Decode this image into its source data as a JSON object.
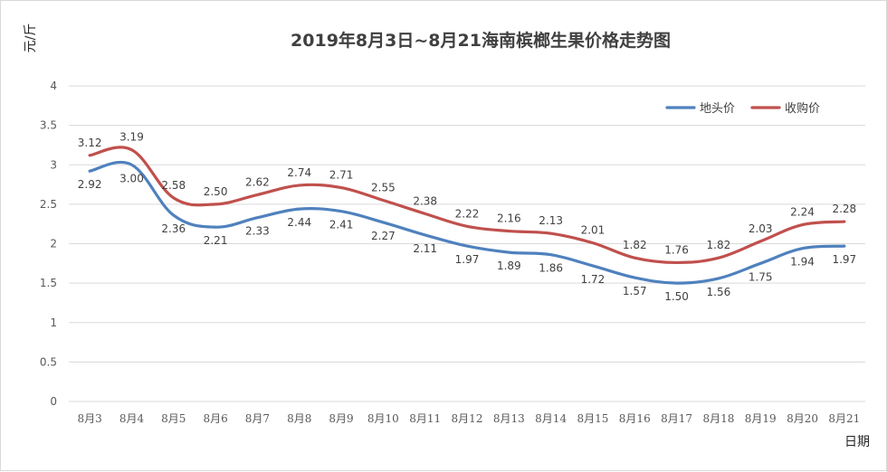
{
  "chart_data": {
    "type": "line",
    "title": "2019年8月3日~8月21海南槟榔生果价格走势图",
    "ylabel": "元/斤",
    "xlabel": "日期",
    "ylim": [
      0,
      4
    ],
    "yticks": [
      "0",
      "0.5",
      "1",
      "1.5",
      "2",
      "2.5",
      "3",
      "3.5",
      "4"
    ],
    "grid": true,
    "legend_position": "top-right",
    "categories": [
      "8月3",
      "8月4",
      "8月5",
      "8月6",
      "8月7",
      "8月8",
      "8月9",
      "8月10",
      "8月11",
      "8月12",
      "8月13",
      "8月14",
      "8月15",
      "8月16",
      "8月17",
      "8月18",
      "8月19",
      "8月20",
      "8月21"
    ],
    "series": [
      {
        "name": "地头价",
        "color": "#4f81bd",
        "values": [
          2.92,
          3.0,
          2.36,
          2.21,
          2.33,
          2.44,
          2.41,
          2.27,
          2.11,
          1.97,
          1.89,
          1.86,
          1.72,
          1.57,
          1.5,
          1.56,
          1.75,
          1.94,
          1.97
        ],
        "labels": [
          "2.92",
          "3.00",
          "2.36",
          "2.21",
          "2.33",
          "2.44",
          "2.41",
          "2.27",
          "2.11",
          "1.97",
          "1.89",
          "1.86",
          "1.72",
          "1.57",
          "1.50",
          "1.56",
          "1.75",
          "1.94",
          "1.97"
        ]
      },
      {
        "name": "收购价",
        "color": "#c0504d",
        "values": [
          3.12,
          3.19,
          2.58,
          2.5,
          2.62,
          2.74,
          2.71,
          2.55,
          2.38,
          2.22,
          2.16,
          2.13,
          2.01,
          1.82,
          1.76,
          1.82,
          2.03,
          2.24,
          2.28
        ],
        "labels": [
          "3.12",
          "3.19",
          "2.58",
          "2.50",
          "2.62",
          "2.74",
          "2.71",
          "2.55",
          "2.38",
          "2.22",
          "2.16",
          "2.13",
          "2.01",
          "1.82",
          "1.76",
          "1.82",
          "2.03",
          "2.24",
          "2.28"
        ]
      }
    ]
  }
}
